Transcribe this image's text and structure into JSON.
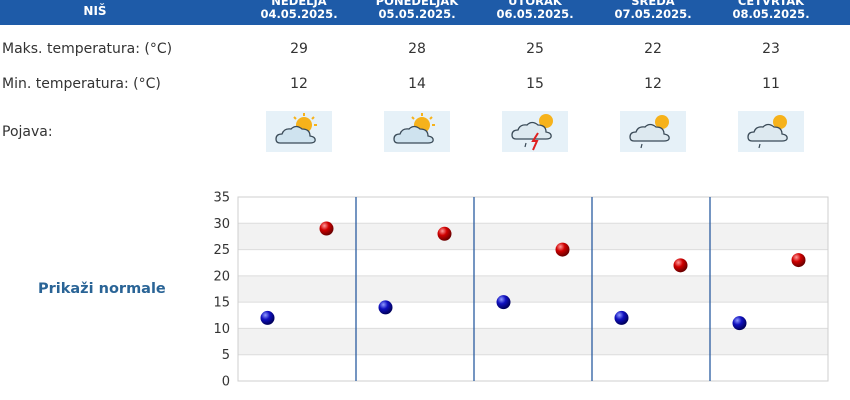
{
  "header": {
    "city": "NIŠ",
    "days": [
      {
        "name": "NEDELJA",
        "date": "04.05.2025."
      },
      {
        "name": "PONEDELJAK",
        "date": "05.05.2025."
      },
      {
        "name": "UTORAK",
        "date": "06.05.2025."
      },
      {
        "name": "SREDA",
        "date": "07.05.2025."
      },
      {
        "name": "ČETVRTAK",
        "date": "08.05.2025."
      }
    ]
  },
  "rows": {
    "max_label": "Maks. temperatura: (°C)",
    "min_label": "Min. temperatura: (°C)",
    "phenomena_label": "Pojava:",
    "max_values": [
      "29",
      "28",
      "25",
      "22",
      "23"
    ],
    "min_values": [
      "12",
      "14",
      "15",
      "12",
      "11"
    ],
    "icons": [
      "partly-cloudy-icon",
      "partly-cloudy-icon",
      "thunderstorm-icon",
      "cloudy-light-rain-icon",
      "cloudy-light-rain-icon"
    ]
  },
  "normals_link": "Prikaži normale",
  "colors": {
    "header_bg": "#1e5ba8",
    "max_marker": "#c00000",
    "min_marker": "#1010b0",
    "link": "#2a6496"
  },
  "chart_data": {
    "type": "scatter",
    "categories": [
      "04.05.2025.",
      "05.05.2025.",
      "06.05.2025.",
      "07.05.2025.",
      "08.05.2025."
    ],
    "series": [
      {
        "values": [
          29,
          28,
          25,
          22,
          23
        ]
      },
      {
        "values": [
          12,
          14,
          15,
          12,
          11
        ]
      }
    ],
    "yticks": [
      "0",
      "5",
      "10",
      "15",
      "20",
      "25",
      "30",
      "35"
    ],
    "ylim": [
      0,
      35
    ],
    "grid": true
  }
}
